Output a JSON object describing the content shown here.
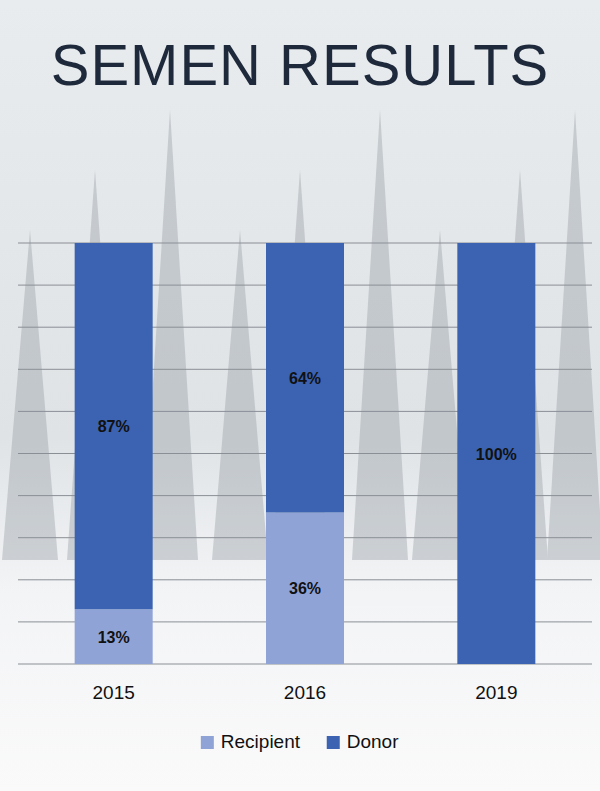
{
  "chart_data": {
    "type": "bar",
    "title": "SEMEN RESULTS",
    "categories": [
      "2015",
      "2016",
      "2019"
    ],
    "series": [
      {
        "name": "Recipient",
        "color": "#8fa3d7",
        "values": [
          13,
          36,
          0
        ],
        "value_labels": [
          "13%",
          "36%",
          null
        ]
      },
      {
        "name": "Donor",
        "color": "#3b63b1",
        "values": [
          87,
          64,
          100
        ],
        "value_labels": [
          "87%",
          "64%",
          "100%"
        ]
      }
    ],
    "ylim": [
      0,
      100
    ],
    "yticks": [
      0,
      10,
      20,
      30,
      40,
      50,
      60,
      70,
      80,
      90,
      100
    ],
    "grid": true,
    "stacked": true,
    "data_labels": true,
    "tick_labels": "x",
    "legend": "bottom"
  }
}
